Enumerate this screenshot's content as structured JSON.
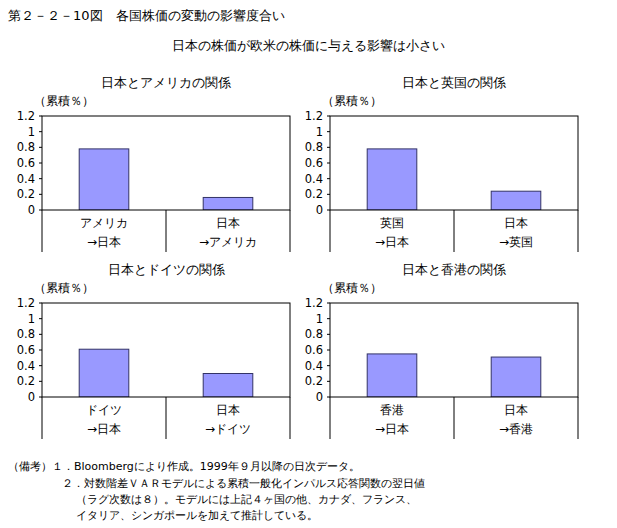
{
  "header": {
    "title": "第２－２－10図　各国株価の変動の影響度合い",
    "subtitle": "日本の株価が欧米の株価に与える影響は小さい"
  },
  "chart_data": [
    {
      "type": "bar",
      "title": "日本とアメリカの関係",
      "y_label": "（累積％）",
      "categories": [
        "アメリカ\n→日本",
        "日本\n→アメリカ"
      ],
      "values": [
        0.78,
        0.16
      ],
      "color": "#9999ff",
      "ylim": [
        0,
        1.2
      ],
      "yticks": [
        0,
        0.2,
        0.4,
        0.6,
        0.8,
        1,
        1.2
      ],
      "grid": false
    },
    {
      "type": "bar",
      "title": "日本と英国の関係",
      "y_label": "（累積％）",
      "categories": [
        "英国\n→日本",
        "日本\n→英国"
      ],
      "values": [
        0.78,
        0.24
      ],
      "color": "#9999ff",
      "ylim": [
        0,
        1.2
      ],
      "yticks": [
        0,
        0.2,
        0.4,
        0.6,
        0.8,
        1,
        1.2
      ],
      "grid": false
    },
    {
      "type": "bar",
      "title": "日本とドイツの関係",
      "y_label": "（累積％）",
      "categories": [
        "ドイツ\n→日本",
        "日本\n→ドイツ"
      ],
      "values": [
        0.61,
        0.3
      ],
      "color": "#9999ff",
      "ylim": [
        0,
        1.2
      ],
      "yticks": [
        0,
        0.2,
        0.4,
        0.6,
        0.8,
        1,
        1.2
      ],
      "grid": false
    },
    {
      "type": "bar",
      "title": "日本と香港の関係",
      "y_label": "（累積％）",
      "categories": [
        "香港\n→日本",
        "日本\n→香港"
      ],
      "values": [
        0.55,
        0.51
      ],
      "color": "#9999ff",
      "ylim": [
        0,
        1.2
      ],
      "yticks": [
        0,
        0.2,
        0.4,
        0.6,
        0.8,
        1,
        1.2
      ],
      "grid": false
    }
  ],
  "notes": [
    "（備考）１．Bloombergにより作成。1999年９月以降の日次データ。",
    "２．対数階差ＶＡＲモデルによる累積一般化インパルス応答関数の翌日値",
    "（ラグ次数は８）。モデルには上記４ヶ国の他、カナダ、フランス、",
    "イタリア、シンガポールを加えて推計している。"
  ]
}
